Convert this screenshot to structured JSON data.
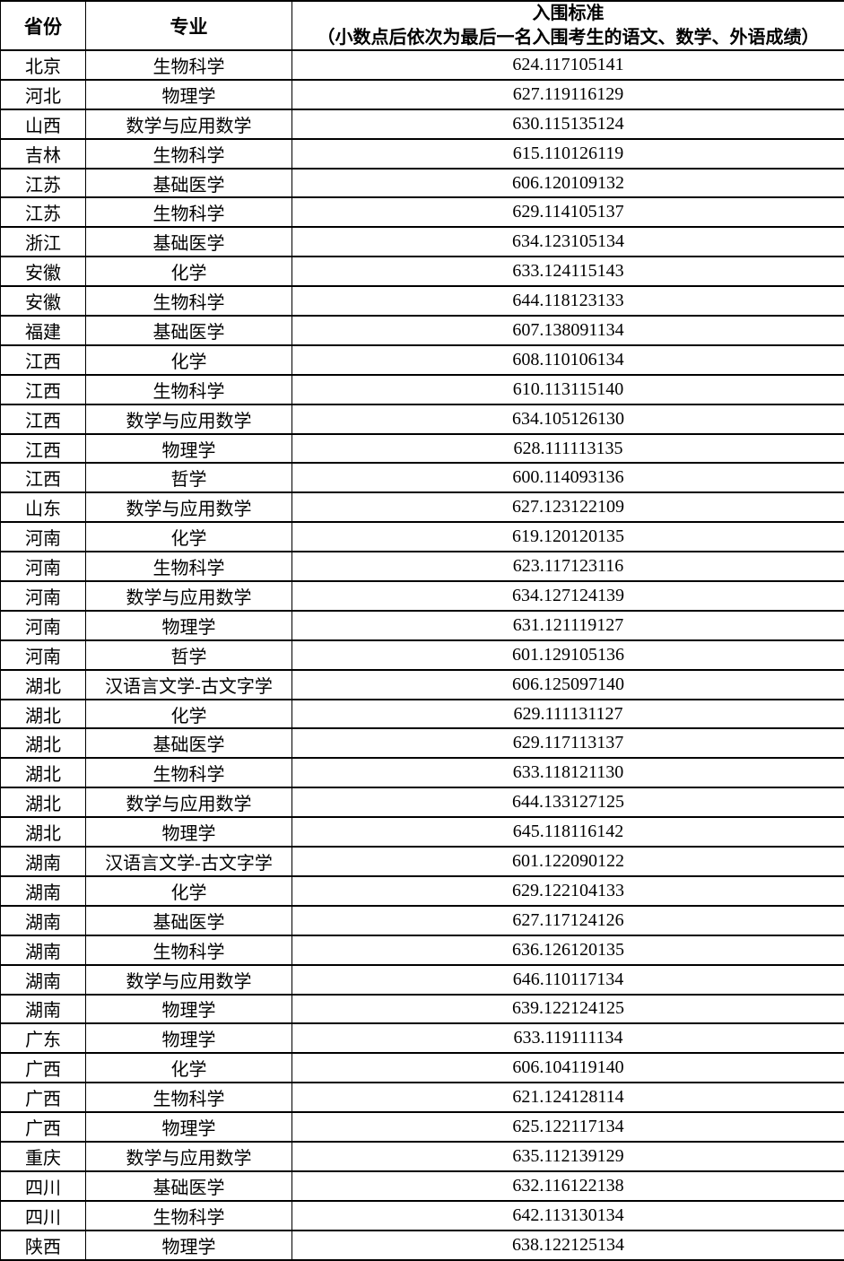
{
  "colors": {
    "background": "#ffffff",
    "border": "#000000",
    "text": "#000000"
  },
  "table": {
    "header": {
      "province": "省份",
      "major": "专业",
      "criteria_title": "入围标准",
      "criteria_subtitle": "（小数点后依次为最后一名入围考生的语文、数学、外语成绩）"
    },
    "rows": [
      {
        "province": "北京",
        "major": "生物科学",
        "score": "624.117105141"
      },
      {
        "province": "河北",
        "major": "物理学",
        "score": "627.119116129"
      },
      {
        "province": "山西",
        "major": "数学与应用数学",
        "score": "630.115135124"
      },
      {
        "province": "吉林",
        "major": "生物科学",
        "score": "615.110126119"
      },
      {
        "province": "江苏",
        "major": "基础医学",
        "score": "606.120109132"
      },
      {
        "province": "江苏",
        "major": "生物科学",
        "score": "629.114105137"
      },
      {
        "province": "浙江",
        "major": "基础医学",
        "score": "634.123105134"
      },
      {
        "province": "安徽",
        "major": "化学",
        "score": "633.124115143"
      },
      {
        "province": "安徽",
        "major": "生物科学",
        "score": "644.118123133"
      },
      {
        "province": "福建",
        "major": "基础医学",
        "score": "607.138091134"
      },
      {
        "province": "江西",
        "major": "化学",
        "score": "608.110106134"
      },
      {
        "province": "江西",
        "major": "生物科学",
        "score": "610.113115140"
      },
      {
        "province": "江西",
        "major": "数学与应用数学",
        "score": "634.105126130"
      },
      {
        "province": "江西",
        "major": "物理学",
        "score": "628.111113135"
      },
      {
        "province": "江西",
        "major": "哲学",
        "score": "600.114093136"
      },
      {
        "province": "山东",
        "major": "数学与应用数学",
        "score": "627.123122109"
      },
      {
        "province": "河南",
        "major": "化学",
        "score": "619.120120135"
      },
      {
        "province": "河南",
        "major": "生物科学",
        "score": "623.117123116"
      },
      {
        "province": "河南",
        "major": "数学与应用数学",
        "score": "634.127124139"
      },
      {
        "province": "河南",
        "major": "物理学",
        "score": "631.121119127"
      },
      {
        "province": "河南",
        "major": "哲学",
        "score": "601.129105136"
      },
      {
        "province": "湖北",
        "major": "汉语言文学-古文字学",
        "score": "606.125097140"
      },
      {
        "province": "湖北",
        "major": "化学",
        "score": "629.111131127"
      },
      {
        "province": "湖北",
        "major": "基础医学",
        "score": "629.117113137"
      },
      {
        "province": "湖北",
        "major": "生物科学",
        "score": "633.118121130"
      },
      {
        "province": "湖北",
        "major": "数学与应用数学",
        "score": "644.133127125"
      },
      {
        "province": "湖北",
        "major": "物理学",
        "score": "645.118116142"
      },
      {
        "province": "湖南",
        "major": "汉语言文学-古文字学",
        "score": "601.122090122"
      },
      {
        "province": "湖南",
        "major": "化学",
        "score": "629.122104133"
      },
      {
        "province": "湖南",
        "major": "基础医学",
        "score": "627.117124126"
      },
      {
        "province": "湖南",
        "major": "生物科学",
        "score": "636.126120135"
      },
      {
        "province": "湖南",
        "major": "数学与应用数学",
        "score": "646.110117134"
      },
      {
        "province": "湖南",
        "major": "物理学",
        "score": "639.122124125"
      },
      {
        "province": "广东",
        "major": "物理学",
        "score": "633.119111134"
      },
      {
        "province": "广西",
        "major": "化学",
        "score": "606.104119140"
      },
      {
        "province": "广西",
        "major": "生物科学",
        "score": "621.124128114"
      },
      {
        "province": "广西",
        "major": "物理学",
        "score": "625.122117134"
      },
      {
        "province": "重庆",
        "major": "数学与应用数学",
        "score": "635.112139129"
      },
      {
        "province": "四川",
        "major": "基础医学",
        "score": "632.116122138"
      },
      {
        "province": "四川",
        "major": "生物科学",
        "score": "642.113130134"
      },
      {
        "province": "陕西",
        "major": "物理学",
        "score": "638.122125134"
      }
    ]
  }
}
